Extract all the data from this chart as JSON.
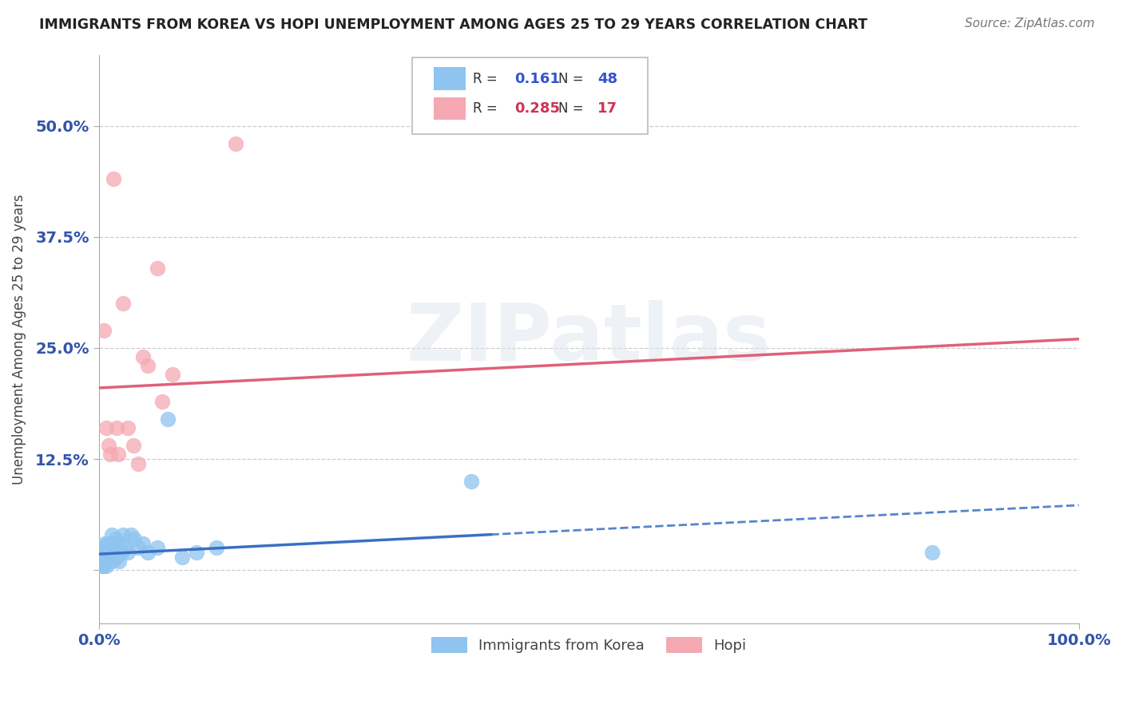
{
  "title": "IMMIGRANTS FROM KOREA VS HOPI UNEMPLOYMENT AMONG AGES 25 TO 29 YEARS CORRELATION CHART",
  "source": "Source: ZipAtlas.com",
  "ylabel": "Unemployment Among Ages 25 to 29 years",
  "xlim": [
    0.0,
    1.0
  ],
  "ylim": [
    -0.06,
    0.58
  ],
  "yticks": [
    0.0,
    0.125,
    0.25,
    0.375,
    0.5
  ],
  "ytick_labels": [
    "",
    "12.5%",
    "25.0%",
    "37.5%",
    "50.0%"
  ],
  "xticks": [
    0.0,
    1.0
  ],
  "xtick_labels": [
    "0.0%",
    "100.0%"
  ],
  "background_color": "#ffffff",
  "grid_color": "#c8c8c8",
  "title_color": "#222222",
  "source_color": "#777777",
  "watermark_text": "ZIPatlas",
  "blue_color": "#8ec4ef",
  "pink_color": "#f5a8b2",
  "blue_line_color": "#3a6fc4",
  "pink_line_color": "#e0607a",
  "legend_blue_label": "Immigrants from Korea",
  "legend_pink_label": "Hopi",
  "R_blue": 0.161,
  "N_blue": 48,
  "R_pink": 0.285,
  "N_pink": 17,
  "blue_points_x": [
    0.002,
    0.003,
    0.004,
    0.004,
    0.005,
    0.005,
    0.005,
    0.006,
    0.006,
    0.007,
    0.007,
    0.008,
    0.008,
    0.009,
    0.009,
    0.01,
    0.01,
    0.011,
    0.012,
    0.012,
    0.013,
    0.013,
    0.014,
    0.015,
    0.015,
    0.016,
    0.017,
    0.018,
    0.019,
    0.02,
    0.021,
    0.022,
    0.023,
    0.025,
    0.027,
    0.03,
    0.033,
    0.036,
    0.04,
    0.045,
    0.05,
    0.06,
    0.07,
    0.085,
    0.1,
    0.12,
    0.38,
    0.85
  ],
  "blue_points_y": [
    0.01,
    0.005,
    0.015,
    0.025,
    0.02,
    0.01,
    0.005,
    0.03,
    0.015,
    0.02,
    0.01,
    0.025,
    0.005,
    0.015,
    0.03,
    0.02,
    0.01,
    0.025,
    0.015,
    0.03,
    0.04,
    0.02,
    0.01,
    0.025,
    0.015,
    0.02,
    0.035,
    0.015,
    0.025,
    0.02,
    0.01,
    0.03,
    0.02,
    0.04,
    0.025,
    0.02,
    0.04,
    0.035,
    0.025,
    0.03,
    0.02,
    0.025,
    0.17,
    0.015,
    0.02,
    0.025,
    0.1,
    0.02
  ],
  "pink_points_x": [
    0.005,
    0.008,
    0.01,
    0.012,
    0.015,
    0.018,
    0.02,
    0.025,
    0.03,
    0.035,
    0.04,
    0.045,
    0.05,
    0.06,
    0.065,
    0.075,
    0.14
  ],
  "pink_points_y": [
    0.27,
    0.16,
    0.14,
    0.13,
    0.44,
    0.16,
    0.13,
    0.3,
    0.16,
    0.14,
    0.12,
    0.24,
    0.23,
    0.34,
    0.19,
    0.22,
    0.48
  ],
  "blue_trend_x_solid_start": 0.0,
  "blue_trend_x_solid_end": 0.4,
  "blue_trend_x_dashed_start": 0.4,
  "blue_trend_x_dashed_end": 1.0,
  "blue_trend_slope": 0.055,
  "blue_trend_intercept": 0.018,
  "pink_trend_x_start": 0.0,
  "pink_trend_x_end": 1.0,
  "pink_trend_slope": 0.055,
  "pink_trend_intercept": 0.205
}
